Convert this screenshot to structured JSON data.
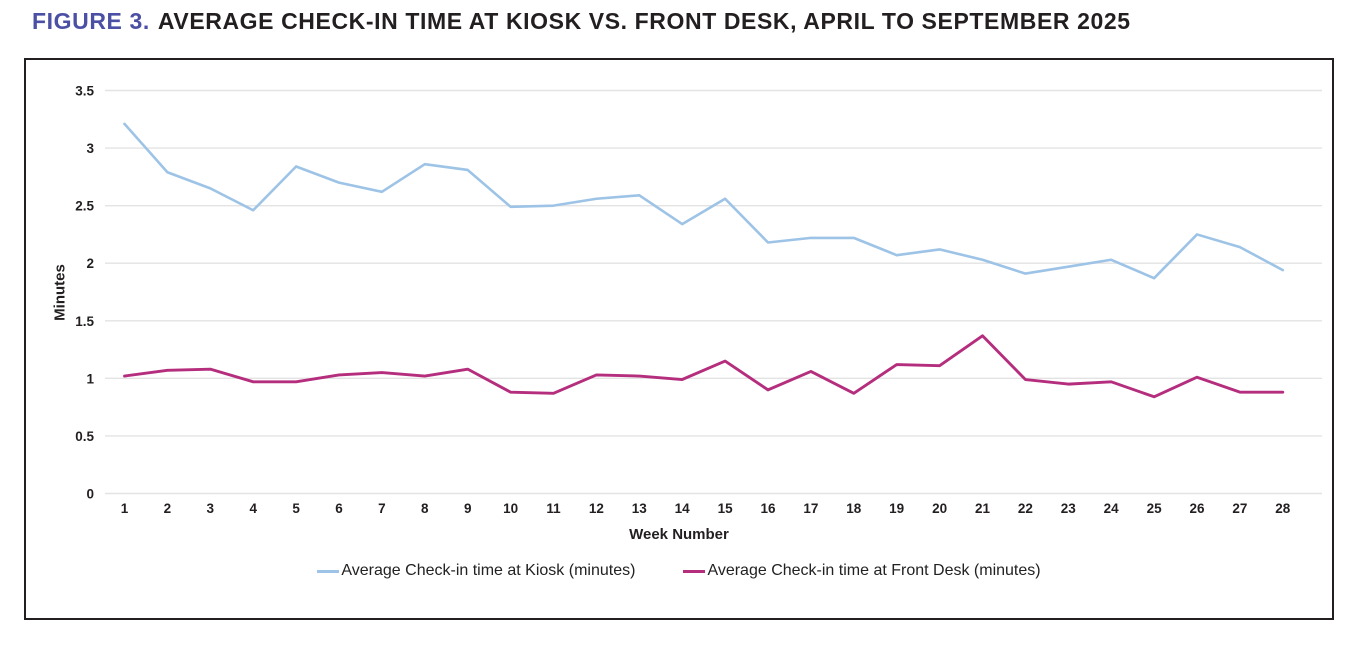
{
  "page": {
    "figure_label": "FIGURE 3.",
    "title": "AVERAGE CHECK-IN TIME AT KIOSK VS. FRONT DESK, APRIL TO SEPTEMBER 2025"
  },
  "colors": {
    "figure_label_purple": "#4b50a5",
    "kiosk_line": "#9dc3e6",
    "front_desk_line": "#b52e7e",
    "gridline": "#e3e3e3",
    "axis_text": "#231f20",
    "frame_border": "#231f20"
  },
  "chart_data": {
    "type": "line",
    "title": "FIGURE 3. AVERAGE CHECK-IN TIME AT KIOSK VS. FRONT DESK, APRIL TO SEPTEMBER 2025",
    "xlabel": "Week Number",
    "ylabel": "Minutes",
    "x": [
      1,
      2,
      3,
      4,
      5,
      6,
      7,
      8,
      9,
      10,
      11,
      12,
      13,
      14,
      15,
      16,
      17,
      18,
      19,
      20,
      21,
      22,
      23,
      24,
      25,
      26,
      27,
      28
    ],
    "ylim": [
      0,
      3.5
    ],
    "yticks": [
      0,
      0.5,
      1,
      1.5,
      2,
      2.5,
      3,
      3.5
    ],
    "grid": true,
    "legend_position": "bottom",
    "series": [
      {
        "name": "Average Check-in time at Kiosk (minutes)",
        "color": "#9dc3e6",
        "values": [
          3.21,
          2.79,
          2.65,
          2.46,
          2.84,
          2.7,
          2.62,
          2.86,
          2.81,
          2.49,
          2.5,
          2.56,
          2.59,
          2.34,
          2.56,
          2.18,
          2.22,
          2.22,
          2.07,
          2.12,
          2.03,
          1.91,
          1.97,
          2.03,
          1.87,
          2.25,
          2.14,
          1.94
        ]
      },
      {
        "name": "Average Check-in time at Front Desk (minutes)",
        "color": "#b52e7e",
        "values": [
          1.02,
          1.07,
          1.08,
          0.97,
          0.97,
          1.03,
          1.05,
          1.02,
          1.08,
          0.88,
          0.87,
          1.03,
          1.02,
          0.99,
          1.15,
          0.9,
          1.06,
          0.87,
          1.12,
          1.11,
          1.37,
          0.99,
          0.95,
          0.97,
          0.84,
          1.01,
          0.88,
          0.88
        ]
      }
    ]
  }
}
